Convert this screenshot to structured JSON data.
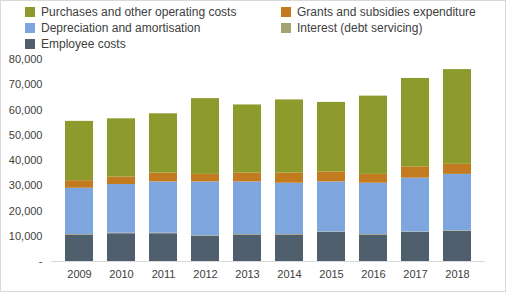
{
  "chart_data": {
    "type": "bar",
    "stacked": true,
    "grid": false,
    "legend": "top",
    "categories": [
      "2009",
      "2010",
      "2011",
      "2012",
      "2013",
      "2014",
      "2015",
      "2016",
      "2017",
      "2018"
    ],
    "series": [
      {
        "name": "Employee costs",
        "color": "#4f5f6e",
        "values": [
          10500,
          11000,
          11000,
          10000,
          10500,
          10500,
          11500,
          10500,
          11500,
          12000
        ]
      },
      {
        "name": "Interest (debt servicing)",
        "color": "#a3a374",
        "values": [
          200,
          200,
          200,
          200,
          200,
          200,
          200,
          200,
          200,
          200
        ]
      },
      {
        "name": "Depreciation and amortisation",
        "color": "#7ea6de",
        "values": [
          18300,
          19300,
          20300,
          21300,
          20800,
          20300,
          19800,
          20300,
          21300,
          22300
        ]
      },
      {
        "name": "Grants and subsidies expenditure",
        "color": "#c27b1f",
        "values": [
          3000,
          3000,
          3500,
          3000,
          3500,
          4000,
          4000,
          3500,
          4500,
          4000
        ]
      },
      {
        "name": "Purchases and other operating costs",
        "color": "#8c9b2b",
        "values": [
          23500,
          23000,
          23500,
          30000,
          27000,
          29000,
          27500,
          31000,
          35000,
          37500
        ]
      }
    ],
    "ylim": [
      0,
      80000
    ],
    "yticks": [
      {
        "value": 0,
        "label": "-"
      },
      {
        "value": 10000,
        "label": "10,000"
      },
      {
        "value": 20000,
        "label": "20,000"
      },
      {
        "value": 30000,
        "label": "30,000"
      },
      {
        "value": 40000,
        "label": "40,000"
      },
      {
        "value": 50000,
        "label": "50,000"
      },
      {
        "value": 60000,
        "label": "60,000"
      },
      {
        "value": 70000,
        "label": "70,000"
      },
      {
        "value": 80000,
        "label": "80,000"
      }
    ]
  }
}
